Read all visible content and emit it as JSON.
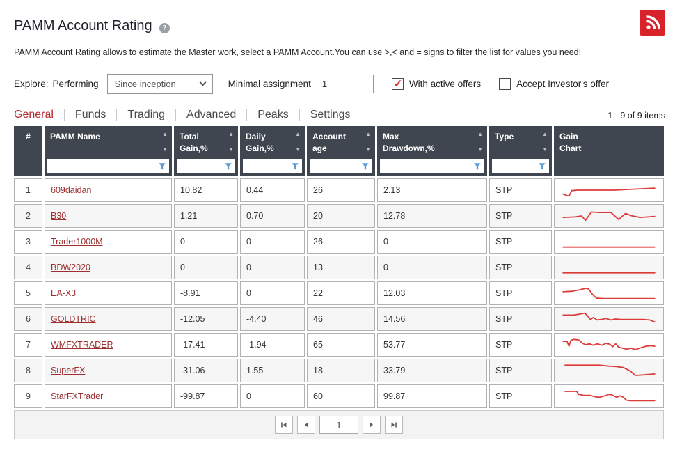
{
  "page": {
    "title": "PAMM Account Rating",
    "help_icon_glyph": "?",
    "description": "PAMM Account Rating allows to estimate the Master work, select a PAMM Account.You can use >,< and = signs to filter the list for values you need!"
  },
  "filters": {
    "explore_label": "Explore:",
    "performing_label": "Performing",
    "period_value": "Since inception",
    "minimal_assignment_label": "Minimal assignment",
    "minimal_assignment_value": "1",
    "checkboxes": [
      {
        "label": "With active offers",
        "checked": true
      },
      {
        "label": "Accept Investor's offer",
        "checked": false
      }
    ]
  },
  "tabs": [
    {
      "label": "General",
      "active": true
    },
    {
      "label": "Funds",
      "active": false
    },
    {
      "label": "Trading",
      "active": false
    },
    {
      "label": "Advanced",
      "active": false
    },
    {
      "label": "Peaks",
      "active": false
    },
    {
      "label": "Settings",
      "active": false
    }
  ],
  "items_count": "1 - 9 of 9 items",
  "table": {
    "columns": [
      {
        "key": "num",
        "lines": [
          "#"
        ],
        "sortable": false,
        "filterable": false
      },
      {
        "key": "name",
        "lines": [
          "PAMM Name"
        ],
        "sortable": true,
        "filterable": true
      },
      {
        "key": "total_gain",
        "lines": [
          "Total",
          "Gain,%"
        ],
        "sortable": true,
        "filterable": true
      },
      {
        "key": "daily_gain",
        "lines": [
          "Daily",
          "Gain,%"
        ],
        "sortable": true,
        "filterable": true
      },
      {
        "key": "account_age",
        "lines": [
          "Account",
          "age"
        ],
        "sortable": true,
        "filterable": true
      },
      {
        "key": "max_drawdown",
        "lines": [
          "Max",
          "Drawdown,%"
        ],
        "sortable": true,
        "filterable": true
      },
      {
        "key": "type",
        "lines": [
          "Type"
        ],
        "sortable": true,
        "filterable": true
      },
      {
        "key": "chart",
        "lines": [
          "Gain",
          "Chart"
        ],
        "sortable": false,
        "filterable": false
      }
    ],
    "rows": [
      {
        "num": "1",
        "name": "609daidan",
        "total_gain": "10.82",
        "daily_gain": "0.44",
        "account_age": "26",
        "max_drawdown": "2.13",
        "type": "STP",
        "spark": [
          [
            3,
            28
          ],
          [
            7,
            31
          ],
          [
            9,
            32
          ],
          [
            12,
            21
          ],
          [
            18,
            20
          ],
          [
            55,
            20
          ],
          [
            75,
            18
          ],
          [
            97,
            16
          ]
        ]
      },
      {
        "num": "2",
        "name": "B30",
        "total_gain": "1.21",
        "daily_gain": "0.70",
        "account_age": "20",
        "max_drawdown": "12.78",
        "type": "STP",
        "spark": [
          [
            3,
            23
          ],
          [
            15,
            22
          ],
          [
            22,
            20
          ],
          [
            26,
            29
          ],
          [
            32,
            12
          ],
          [
            40,
            13
          ],
          [
            52,
            13
          ],
          [
            60,
            27
          ],
          [
            67,
            15
          ],
          [
            74,
            20
          ],
          [
            82,
            23
          ],
          [
            90,
            22
          ],
          [
            97,
            21
          ]
        ]
      },
      {
        "num": "3",
        "name": "Trader1000M",
        "total_gain": "0",
        "daily_gain": "0",
        "account_age": "26",
        "max_drawdown": "0",
        "type": "STP",
        "spark": [
          [
            3,
            31
          ],
          [
            97,
            31
          ]
        ]
      },
      {
        "num": "4",
        "name": "BDW2020",
        "total_gain": "0",
        "daily_gain": "0",
        "account_age": "13",
        "max_drawdown": "0",
        "type": "STP",
        "spark": [
          [
            3,
            31
          ],
          [
            97,
            31
          ]
        ]
      },
      {
        "num": "5",
        "name": "EA-X3",
        "total_gain": "-8.91",
        "daily_gain": "0",
        "account_age": "22",
        "max_drawdown": "12.03",
        "type": "STP",
        "spark": [
          [
            3,
            17
          ],
          [
            12,
            16
          ],
          [
            20,
            13
          ],
          [
            26,
            10
          ],
          [
            29,
            11
          ],
          [
            33,
            22
          ],
          [
            37,
            30
          ],
          [
            45,
            31
          ],
          [
            97,
            31
          ]
        ]
      },
      {
        "num": "6",
        "name": "GOLDTRIC",
        "total_gain": "-12.05",
        "daily_gain": "-4.40",
        "account_age": "46",
        "max_drawdown": "14.56",
        "type": "STP",
        "spark": [
          [
            3,
            12
          ],
          [
            14,
            12
          ],
          [
            20,
            10
          ],
          [
            25,
            8
          ],
          [
            28,
            13
          ],
          [
            31,
            21
          ],
          [
            34,
            17
          ],
          [
            38,
            22
          ],
          [
            42,
            21
          ],
          [
            47,
            19
          ],
          [
            52,
            22
          ],
          [
            57,
            20
          ],
          [
            62,
            21
          ],
          [
            85,
            21
          ],
          [
            92,
            22
          ],
          [
            97,
            26
          ]
        ]
      },
      {
        "num": "7",
        "name": "WMFXTRADER",
        "total_gain": "-17.41",
        "daily_gain": "-1.94",
        "account_age": "65",
        "max_drawdown": "53.77",
        "type": "STP",
        "spark": [
          [
            3,
            13
          ],
          [
            7,
            13
          ],
          [
            9,
            23
          ],
          [
            11,
            11
          ],
          [
            14,
            9
          ],
          [
            19,
            10
          ],
          [
            23,
            17
          ],
          [
            26,
            20
          ],
          [
            30,
            18
          ],
          [
            34,
            21
          ],
          [
            38,
            18
          ],
          [
            43,
            21
          ],
          [
            47,
            17
          ],
          [
            51,
            19
          ],
          [
            54,
            24
          ],
          [
            57,
            18
          ],
          [
            60,
            25
          ],
          [
            64,
            27
          ],
          [
            68,
            29
          ],
          [
            73,
            27
          ],
          [
            77,
            30
          ],
          [
            83,
            26
          ],
          [
            88,
            23
          ],
          [
            93,
            22
          ],
          [
            97,
            23
          ]
        ]
      },
      {
        "num": "8",
        "name": "SuperFX",
        "total_gain": "-31.06",
        "daily_gain": "1.55",
        "account_age": "18",
        "max_drawdown": "33.79",
        "type": "STP",
        "spark": [
          [
            5,
            9
          ],
          [
            40,
            9
          ],
          [
            50,
            11
          ],
          [
            58,
            12
          ],
          [
            65,
            14
          ],
          [
            72,
            21
          ],
          [
            77,
            30
          ],
          [
            85,
            29
          ],
          [
            97,
            27
          ]
        ]
      },
      {
        "num": "9",
        "name": "StarFXTrader",
        "total_gain": "-99.87",
        "daily_gain": "0",
        "account_age": "60",
        "max_drawdown": "99.87",
        "type": "STP",
        "spark": [
          [
            5,
            10
          ],
          [
            17,
            10
          ],
          [
            19,
            16
          ],
          [
            24,
            18
          ],
          [
            31,
            18
          ],
          [
            36,
            21
          ],
          [
            40,
            22
          ],
          [
            46,
            19
          ],
          [
            50,
            16
          ],
          [
            53,
            17
          ],
          [
            58,
            22
          ],
          [
            61,
            19
          ],
          [
            64,
            21
          ],
          [
            68,
            28
          ],
          [
            72,
            29
          ],
          [
            97,
            29
          ]
        ]
      }
    ]
  },
  "pagination": {
    "page_value": "1"
  },
  "colors": {
    "header_bg": "#40464f",
    "accent_red": "#b3282d",
    "link_red": "#9e2f2f",
    "spark_red": "#dd3a3a",
    "funnel_blue": "#5a9bd4",
    "rss_red": "#d8232a",
    "check_red": "#cc2a2a"
  }
}
